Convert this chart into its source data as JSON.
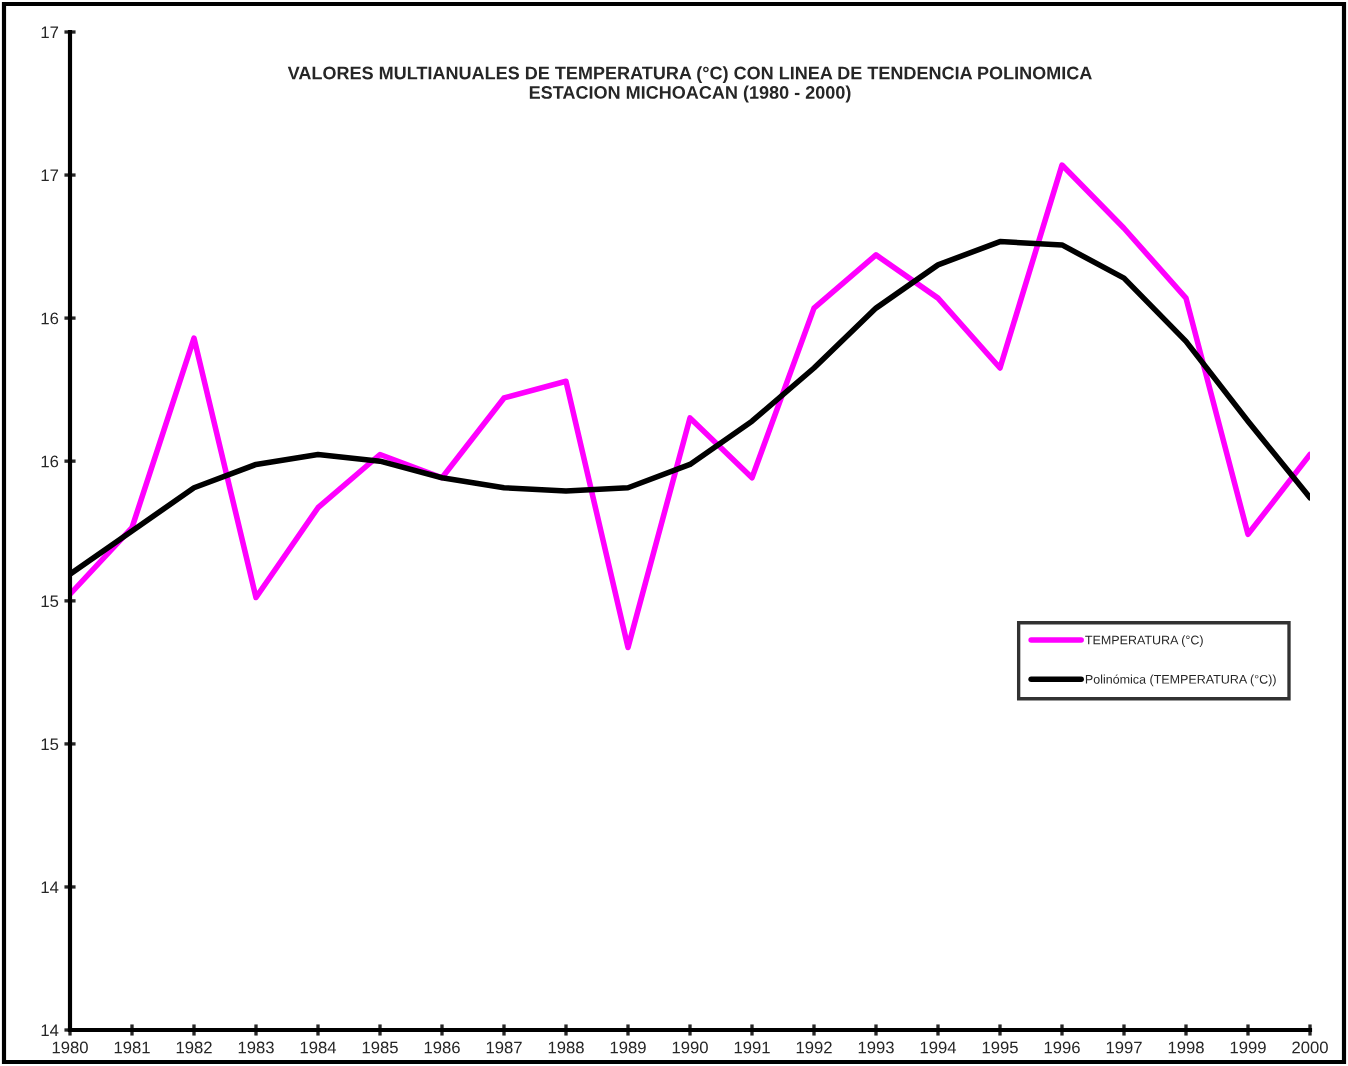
{
  "chart_data": {
    "type": "line",
    "title": "VALORES MULTIANUALES DE TEMPERATURA (°C) CON LINEA DE TENDENCIA POLINOMICA\nESTACION MICHOACAN (1980 - 2000)",
    "categories": [
      "1980",
      "1981",
      "1982",
      "1983",
      "1984",
      "1985",
      "1986",
      "1987",
      "1988",
      "1989",
      "1990",
      "1991",
      "1992",
      "1993",
      "1994",
      "1995",
      "1996",
      "1997",
      "1998",
      "1999",
      "2000"
    ],
    "series": [
      {
        "name": "TEMPERATURA (°C)",
        "color": "#ff00ff",
        "values": [
          15.31,
          15.51,
          16.08,
          15.3,
          15.57,
          15.73,
          15.66,
          15.9,
          15.95,
          15.15,
          15.84,
          15.66,
          16.17,
          16.33,
          16.2,
          15.99,
          16.6,
          16.41,
          16.2,
          15.49,
          15.73
        ]
      },
      {
        "name": "Polinómica (TEMPERATURA (°C))",
        "color": "#000000",
        "values": [
          15.37,
          15.5,
          15.63,
          15.7,
          15.73,
          15.71,
          15.66,
          15.63,
          15.62,
          15.63,
          15.7,
          15.83,
          15.99,
          16.17,
          16.3,
          16.37,
          16.36,
          16.26,
          16.07,
          15.83,
          15.6
        ]
      }
    ],
    "ylim": [
      14,
      17
    ],
    "yticks": [
      {
        "value": 14,
        "label": "14"
      },
      {
        "value": 14.43,
        "label": "14"
      },
      {
        "value": 14.86,
        "label": "15"
      },
      {
        "value": 15.29,
        "label": "15"
      },
      {
        "value": 15.71,
        "label": "16"
      },
      {
        "value": 16.14,
        "label": "16"
      },
      {
        "value": 16.57,
        "label": "17"
      },
      {
        "value": 17,
        "label": "17"
      }
    ],
    "grid": false,
    "legend": "right",
    "marker": "none",
    "line_style": "solid"
  }
}
